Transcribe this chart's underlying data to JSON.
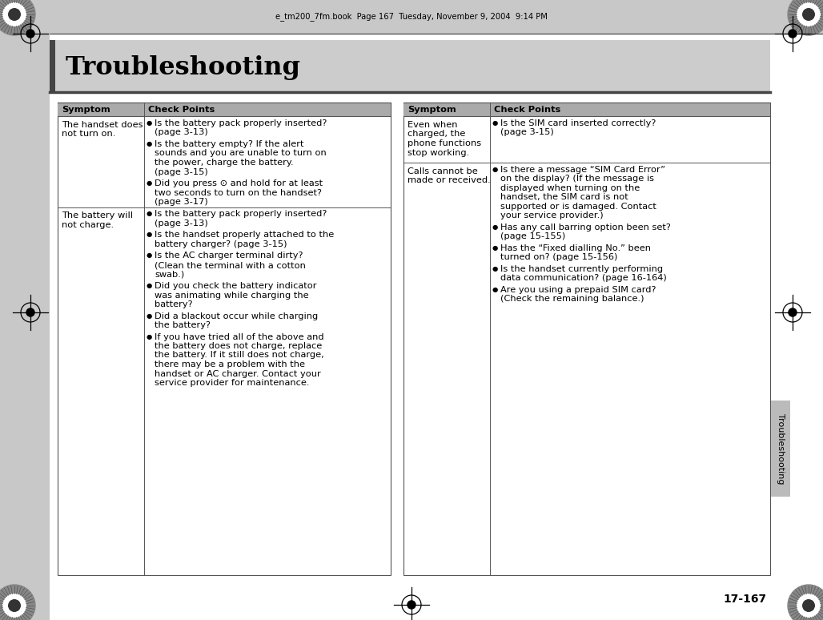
{
  "page_bg": "#ffffff",
  "outer_bg": "#c8c8c8",
  "title_area_bg": "#cccccc",
  "header_row_bg": "#aaaaaa",
  "title": "Troubleshooting",
  "top_file_label": "e_tm200_7fm.book  Page 167  Tuesday, November 9, 2004  9:14 PM",
  "page_number": "17-167",
  "side_label": "Troubleshooting",
  "left_table": {
    "headers": [
      "Symptom",
      "Check Points"
    ],
    "rows": [
      {
        "symptom": "The handset does\nnot turn on.",
        "points": [
          "Is the battery pack properly inserted?\n(page 3-13)",
          "Is the battery empty? If the alert\nsounds and you are unable to turn on\nthe power, charge the battery.\n(page 3-15)",
          "Did you press ⊙ and hold for at least\ntwo seconds to turn on the handset?\n(page 3-17)"
        ]
      },
      {
        "symptom": "The battery will\nnot charge.",
        "points": [
          "Is the battery pack properly inserted?\n(page 3-13)",
          "Is the handset properly attached to the\nbattery charger? (page 3-15)",
          "Is the AC charger terminal dirty?\n(Clean the terminal with a cotton\nswab.)",
          "Did you check the battery indicator\nwas animating while charging the\nbattery?",
          "Did a blackout occur while charging\nthe battery?",
          "If you have tried all of the above and\nthe battery does not charge, replace\nthe battery. If it still does not charge,\nthere may be a problem with the\nhandset or AC charger. Contact your\nservice provider for maintenance."
        ]
      }
    ]
  },
  "right_table": {
    "headers": [
      "Symptom",
      "Check Points"
    ],
    "rows": [
      {
        "symptom": "Even when\ncharged, the\nphone functions\nstop working.",
        "points": [
          "Is the SIM card inserted correctly?\n(page 3-15)"
        ]
      },
      {
        "symptom": "Calls cannot be\nmade or received.",
        "points": [
          "Is there a message “SIM Card Error”\non the display? (If the message is\ndisplayed when turning on the\nhandset, the SIM card is not\nsupported or is damaged. Contact\nyour service provider.)",
          "Has any call barring option been set?\n(page 15-155)",
          "Has the “Fixed dialling No.” been\nturned on? (page 15-156)",
          "Is the handset currently performing\ndata communication? (page 16-164)",
          "Are you using a prepaid SIM card?\n(Check the remaining balance.)"
        ]
      }
    ]
  }
}
